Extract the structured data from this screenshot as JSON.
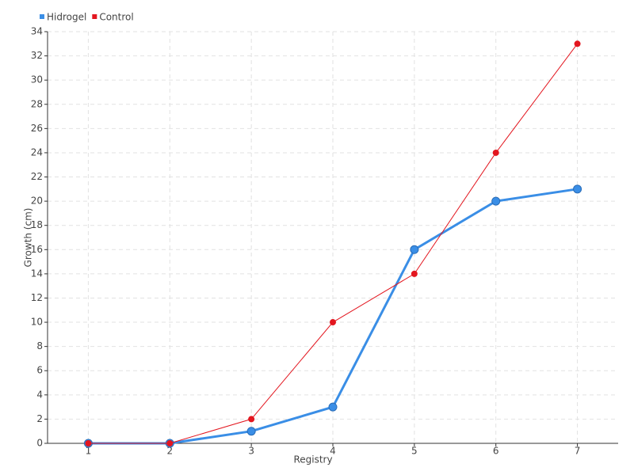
{
  "chart_data": {
    "type": "line",
    "x_label": "Registry",
    "y_label": "Growth (cm)",
    "x": [
      1,
      2,
      3,
      4,
      5,
      6,
      7
    ],
    "series": [
      {
        "name": "Hidrogel",
        "color": "#3a8ee6",
        "values": [
          0,
          0,
          1,
          3,
          16,
          20,
          21
        ]
      },
      {
        "name": "Control",
        "color": "#e3161f",
        "values": [
          0,
          0,
          2,
          10,
          14,
          24,
          33
        ]
      }
    ],
    "xlim": [
      0.5,
      7.5
    ],
    "xticks": [
      1,
      2,
      3,
      4,
      5,
      6,
      7
    ],
    "ylim": [
      0,
      34
    ],
    "yticks": [
      0,
      2,
      4,
      6,
      8,
      10,
      12,
      14,
      16,
      18,
      20,
      22,
      24,
      26,
      28,
      30,
      32,
      34
    ],
    "grid": true,
    "legend": "top-left"
  }
}
